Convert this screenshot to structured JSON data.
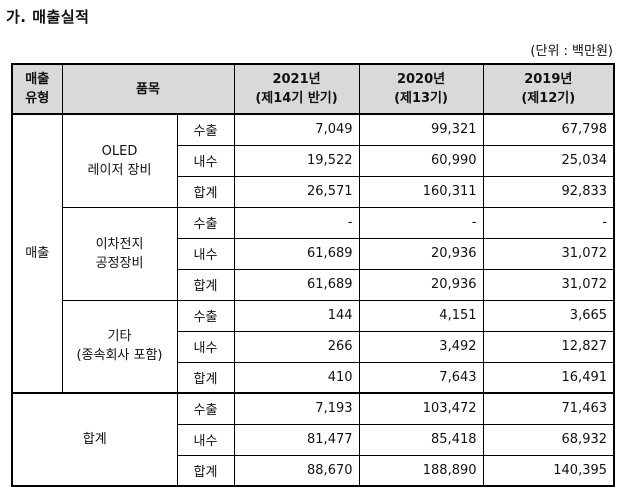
{
  "title": "가. 매출실적",
  "unit": "(단위 : 백만원)",
  "header": {
    "col_type": [
      "매출",
      "유형"
    ],
    "col_item": "품목",
    "years": [
      {
        "year": "2021년",
        "period": "(제14기 반기)"
      },
      {
        "year": "2020년",
        "period": "(제13기)"
      },
      {
        "year": "2019년",
        "period": "(제12기)"
      }
    ]
  },
  "sales_label": "매출",
  "total_label": "합계",
  "groups": [
    {
      "item_lines": [
        "OLED",
        "레이저 장비"
      ],
      "rows": [
        {
          "sub": "수출",
          "v2021": "7,049",
          "v2020": "99,321",
          "v2019": "67,798"
        },
        {
          "sub": "내수",
          "v2021": "19,522",
          "v2020": "60,990",
          "v2019": "25,034"
        },
        {
          "sub": "합계",
          "v2021": "26,571",
          "v2020": "160,311",
          "v2019": "92,833"
        }
      ]
    },
    {
      "item_lines": [
        "이차전지",
        "공정장비"
      ],
      "rows": [
        {
          "sub": "수출",
          "v2021": "-",
          "v2020": "-",
          "v2019": "-"
        },
        {
          "sub": "내수",
          "v2021": "61,689",
          "v2020": "20,936",
          "v2019": "31,072"
        },
        {
          "sub": "합계",
          "v2021": "61,689",
          "v2020": "20,936",
          "v2019": "31,072"
        }
      ]
    },
    {
      "item_lines": [
        "기타",
        "(종속회사 포함)"
      ],
      "rows": [
        {
          "sub": "수출",
          "v2021": "144",
          "v2020": "4,151",
          "v2019": "3,665"
        },
        {
          "sub": "내수",
          "v2021": "266",
          "v2020": "3,492",
          "v2019": "12,827"
        },
        {
          "sub": "합계",
          "v2021": "410",
          "v2020": "7,643",
          "v2019": "16,491"
        }
      ]
    }
  ],
  "total": {
    "rows": [
      {
        "sub": "수출",
        "v2021": "7,193",
        "v2020": "103,472",
        "v2019": "71,463"
      },
      {
        "sub": "내수",
        "v2021": "81,477",
        "v2020": "85,418",
        "v2019": "68,932"
      },
      {
        "sub": "합계",
        "v2021": "88,670",
        "v2020": "188,890",
        "v2019": "140,395"
      }
    ]
  }
}
